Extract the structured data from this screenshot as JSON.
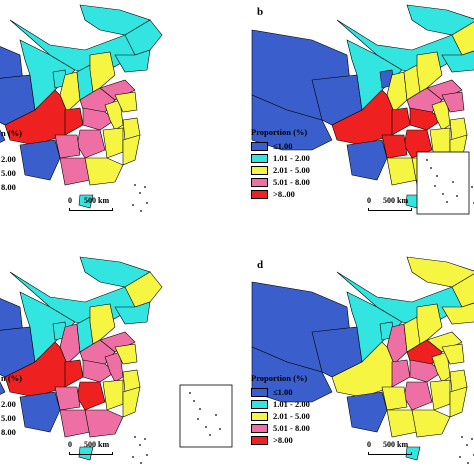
{
  "panels": [
    {
      "id": "a",
      "label": "",
      "show_legend": false,
      "partial_title": "n (%)",
      "partial_items": [
        "2.00",
        "5.00",
        "8.00"
      ],
      "show_inset": false
    },
    {
      "id": "b",
      "label": "b",
      "show_legend": true,
      "show_inset": true
    },
    {
      "id": "c",
      "label": "",
      "show_legend": false,
      "partial_title": "n (%)",
      "partial_items": [
        "2.00",
        "5.00",
        "8.00"
      ],
      "show_inset": true
    },
    {
      "id": "d",
      "label": "d",
      "show_legend": true,
      "show_inset": false
    }
  ],
  "legend": {
    "title": "Proportion (%)",
    "items_b": [
      "≤1.00",
      "1.01 - 2.00",
      "2.01 - 5.00",
      "5.01 - 8.00",
      ">8..00"
    ],
    "items_d": [
      "≤1.00",
      "1.01 - 2.00",
      "2.01 - 5.00",
      "5.01 - 8.00",
      ">8.00"
    ],
    "colors": [
      "#3a5fcd",
      "#33e5e0",
      "#f5f542",
      "#ee6fa4",
      "#ee2020"
    ]
  },
  "scale_bar": {
    "zero": "0",
    "distance": "500 km"
  },
  "colors": {
    "border": "#000000",
    "background": "#ffffff",
    "water": "#ffffff"
  }
}
